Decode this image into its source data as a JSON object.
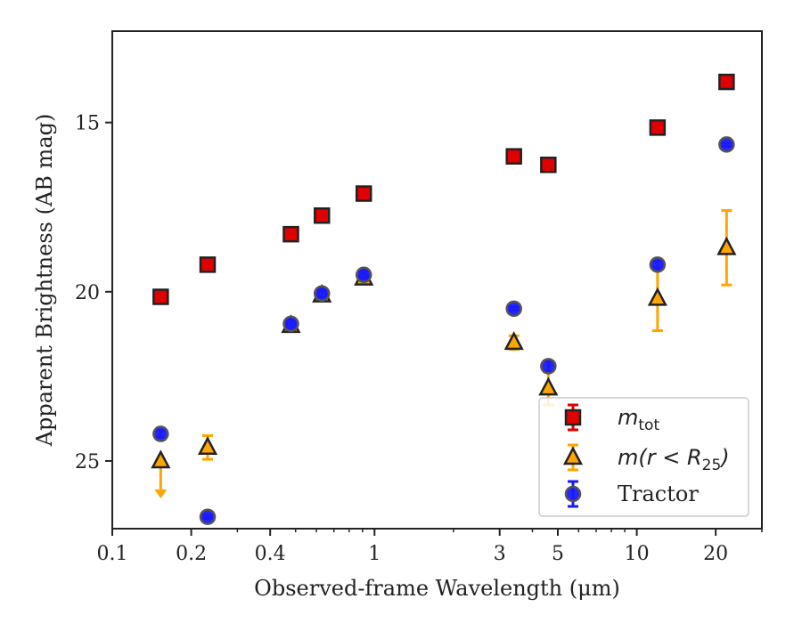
{
  "chart_data": {
    "type": "scatter",
    "xlabel": "Observed-frame Wavelength (μm)",
    "ylabel": "Apparent Brightness (AB mag)",
    "xscale": "log",
    "xlim": [
      0.1,
      30
    ],
    "ylim": [
      27.0,
      12.3
    ],
    "y_inverted": true,
    "xticks": [
      0.1,
      0.2,
      0.4,
      1,
      3,
      5,
      10,
      20
    ],
    "xtick_labels": [
      "0.1",
      "0.2",
      "0.4",
      "1",
      "3",
      "5",
      "10",
      "20"
    ],
    "yticks": [
      15,
      20,
      25
    ],
    "ytick_labels": [
      "15",
      "20",
      "25"
    ],
    "grid": false,
    "legend_position": "bottom-right",
    "series": [
      {
        "name": "m_tot",
        "legend_main": "m",
        "legend_sub": "tot",
        "marker": "square",
        "color": "#e00000",
        "errorbar_color": "#e00000",
        "points": [
          {
            "x": 0.153,
            "y": 20.15
          },
          {
            "x": 0.231,
            "y": 19.2
          },
          {
            "x": 0.48,
            "y": 18.3
          },
          {
            "x": 0.63,
            "y": 17.75
          },
          {
            "x": 0.91,
            "y": 17.1
          },
          {
            "x": 3.4,
            "y": 16.0
          },
          {
            "x": 4.6,
            "y": 16.25
          },
          {
            "x": 12.0,
            "y": 15.15
          },
          {
            "x": 22.0,
            "y": 13.8
          }
        ]
      },
      {
        "name": "m(r < R_25)",
        "legend_main": "m(r < R",
        "legend_sub": "25",
        "legend_close": ")",
        "marker": "triangle",
        "color": "#ffa500",
        "errorbar_color": "#ffa500",
        "points": [
          {
            "x": 0.153,
            "y": 25.0,
            "upper_limit": true,
            "arrow_to": 26.0
          },
          {
            "x": 0.231,
            "y": 24.6,
            "err": 0.35
          },
          {
            "x": 0.48,
            "y": 21.0,
            "err": 0.1
          },
          {
            "x": 0.63,
            "y": 20.1,
            "err": 0.1
          },
          {
            "x": 0.91,
            "y": 19.6,
            "err": 0.1
          },
          {
            "x": 3.4,
            "y": 21.5,
            "err": 0.2
          },
          {
            "x": 4.6,
            "y": 22.85,
            "err": 0.5
          },
          {
            "x": 12.0,
            "y": 20.2,
            "err": 0.95
          },
          {
            "x": 22.0,
            "y": 18.7,
            "err": 1.1
          }
        ]
      },
      {
        "name": "Tractor",
        "marker": "circle",
        "color": "#1a1aff",
        "errorbar_color": "#1a1aff",
        "points": [
          {
            "x": 0.153,
            "y": 24.2,
            "err": 0.1
          },
          {
            "x": 0.231,
            "y": 26.65,
            "err": 0.05
          },
          {
            "x": 0.48,
            "y": 20.95,
            "err": 0.1
          },
          {
            "x": 0.63,
            "y": 20.05,
            "err": 0.1
          },
          {
            "x": 0.91,
            "y": 19.5,
            "err": 0.1
          },
          {
            "x": 3.4,
            "y": 20.5,
            "err": 0.05
          },
          {
            "x": 4.6,
            "y": 22.2,
            "err": 0.15
          },
          {
            "x": 12.0,
            "y": 19.2,
            "err": 0.1
          },
          {
            "x": 22.0,
            "y": 15.65,
            "err": 0.05
          }
        ]
      }
    ]
  }
}
